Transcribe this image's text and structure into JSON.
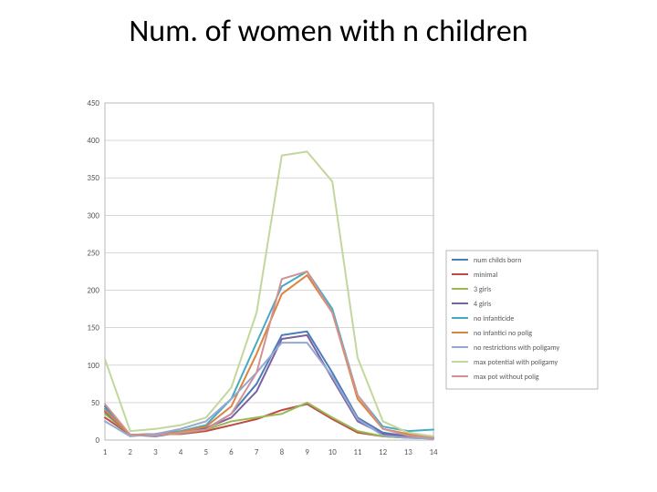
{
  "title": {
    "text": "Num. of women with n children",
    "fontsize": 34,
    "font_family": "Calibri, Arial, sans-serif",
    "color": "#000000"
  },
  "chart": {
    "type": "line",
    "background_color": "#ffffff",
    "plot_border_color": "#888888",
    "grid_color": "#bfbfbf",
    "xlim": [
      1,
      14
    ],
    "ylim": [
      0,
      450
    ],
    "ytick_step": 50,
    "xticks": [
      1,
      2,
      3,
      4,
      5,
      6,
      7,
      8,
      9,
      10,
      11,
      12,
      13,
      14
    ],
    "axis_fontsize": 9,
    "legend_fontsize": 8,
    "legend_position": "right",
    "line_width": 2,
    "categories": [
      1,
      2,
      3,
      4,
      5,
      6,
      7,
      8,
      9,
      10,
      11,
      12,
      13,
      14
    ],
    "series": [
      {
        "name": "num childs born",
        "color": "#4a7ebb",
        "values": [
          45,
          7,
          5,
          10,
          15,
          35,
          75,
          140,
          145,
          90,
          30,
          10,
          5,
          3
        ]
      },
      {
        "name": "minimal",
        "color": "#be4b48",
        "values": [
          30,
          7,
          8,
          8,
          12,
          20,
          28,
          40,
          48,
          28,
          10,
          5,
          3,
          2
        ]
      },
      {
        "name": "3 girls",
        "color": "#98b954",
        "values": [
          35,
          7,
          7,
          9,
          14,
          25,
          30,
          35,
          50,
          30,
          12,
          5,
          3,
          2
        ]
      },
      {
        "name": "4 girls",
        "color": "#7d60a0",
        "values": [
          38,
          7,
          7,
          10,
          16,
          30,
          65,
          135,
          140,
          82,
          25,
          8,
          4,
          2
        ]
      },
      {
        "name": "no infanticide",
        "color": "#46aac5",
        "values": [
          42,
          7,
          8,
          12,
          20,
          55,
          130,
          205,
          225,
          175,
          60,
          18,
          12,
          14
        ]
      },
      {
        "name": "no infantici no polig",
        "color": "#db843d",
        "values": [
          40,
          7,
          7,
          11,
          18,
          45,
          115,
          195,
          220,
          170,
          55,
          15,
          8,
          4
        ]
      },
      {
        "name": "no restrictions with poligamy",
        "color": "#93a9cf",
        "values": [
          25,
          5,
          8,
          15,
          25,
          55,
          90,
          130,
          130,
          85,
          28,
          6,
          3,
          2
        ]
      },
      {
        "name": "max potential with poligamy",
        "color": "#c3d69b",
        "values": [
          108,
          12,
          15,
          20,
          30,
          70,
          170,
          380,
          385,
          345,
          110,
          25,
          10,
          5
        ]
      },
      {
        "name": "max pot without polig",
        "color": "#d19392",
        "values": [
          48,
          7,
          6,
          10,
          14,
          35,
          90,
          215,
          225,
          170,
          60,
          15,
          6,
          3
        ]
      }
    ]
  }
}
